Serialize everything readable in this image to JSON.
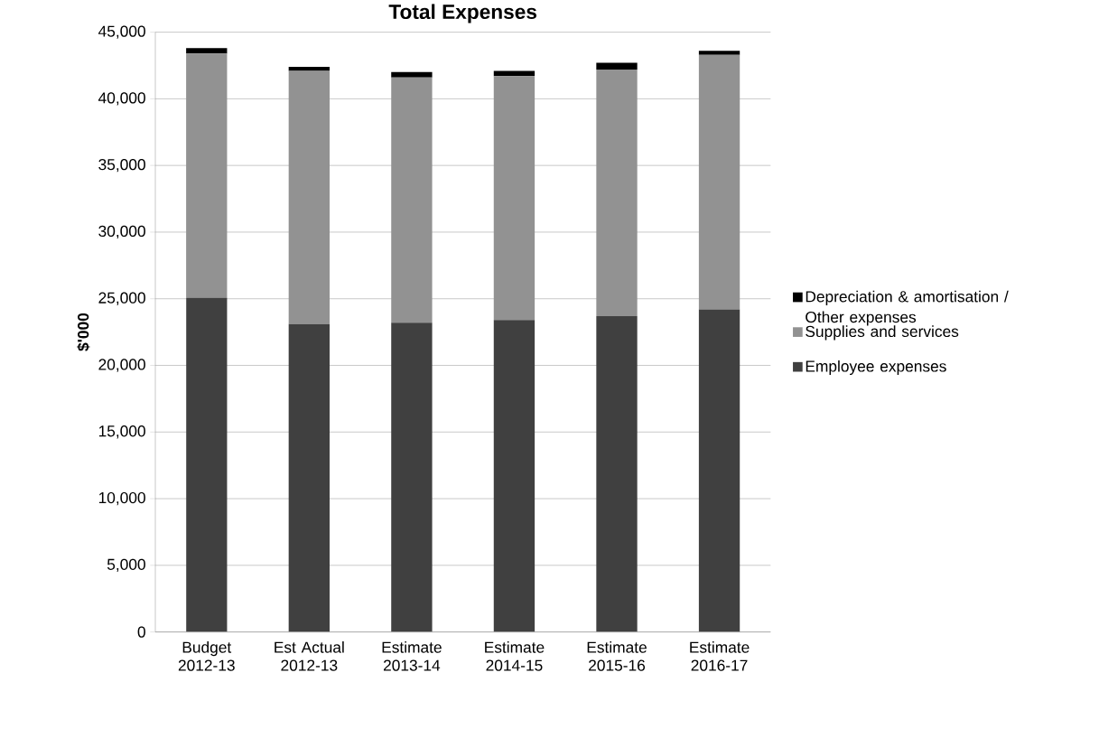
{
  "chart_data": {
    "type": "bar",
    "stacked": true,
    "title": "Total Expenses",
    "ylabel": "$'000",
    "categories": [
      "Budget 2012-13",
      "Est Actual 2012-13",
      "Estimate 2013-14",
      "Estimate 2014-15",
      "Estimate 2015-16",
      "Estimate 2016-17"
    ],
    "series": [
      {
        "name": "Employee expenses",
        "color": "#404040",
        "values": [
          25100,
          23100,
          23200,
          23400,
          23700,
          24200
        ]
      },
      {
        "name": "Supplies and services",
        "color": "#929292",
        "values": [
          18300,
          19000,
          18400,
          18300,
          18500,
          19100
        ]
      },
      {
        "name": "Depreciation & amortisation / Other expenses",
        "color": "#000000",
        "values": [
          400,
          300,
          400,
          400,
          500,
          300
        ]
      }
    ],
    "ylim": [
      0,
      45000
    ],
    "yticks": [
      0,
      {
        "value": 5000,
        "label": "5,000"
      },
      {
        "value": 10000,
        "label": "10,000"
      },
      {
        "value": 15000,
        "label": "15,000"
      },
      {
        "value": 20000,
        "label": "20,000"
      },
      {
        "value": 25000,
        "label": "25,000"
      },
      {
        "value": 30000,
        "label": "30,000"
      },
      {
        "value": 35000,
        "label": "35,000"
      },
      {
        "value": 40000,
        "label": "40,000"
      },
      {
        "value": 45000,
        "label": "45,000"
      }
    ],
    "grid": "y",
    "legend": "right"
  }
}
